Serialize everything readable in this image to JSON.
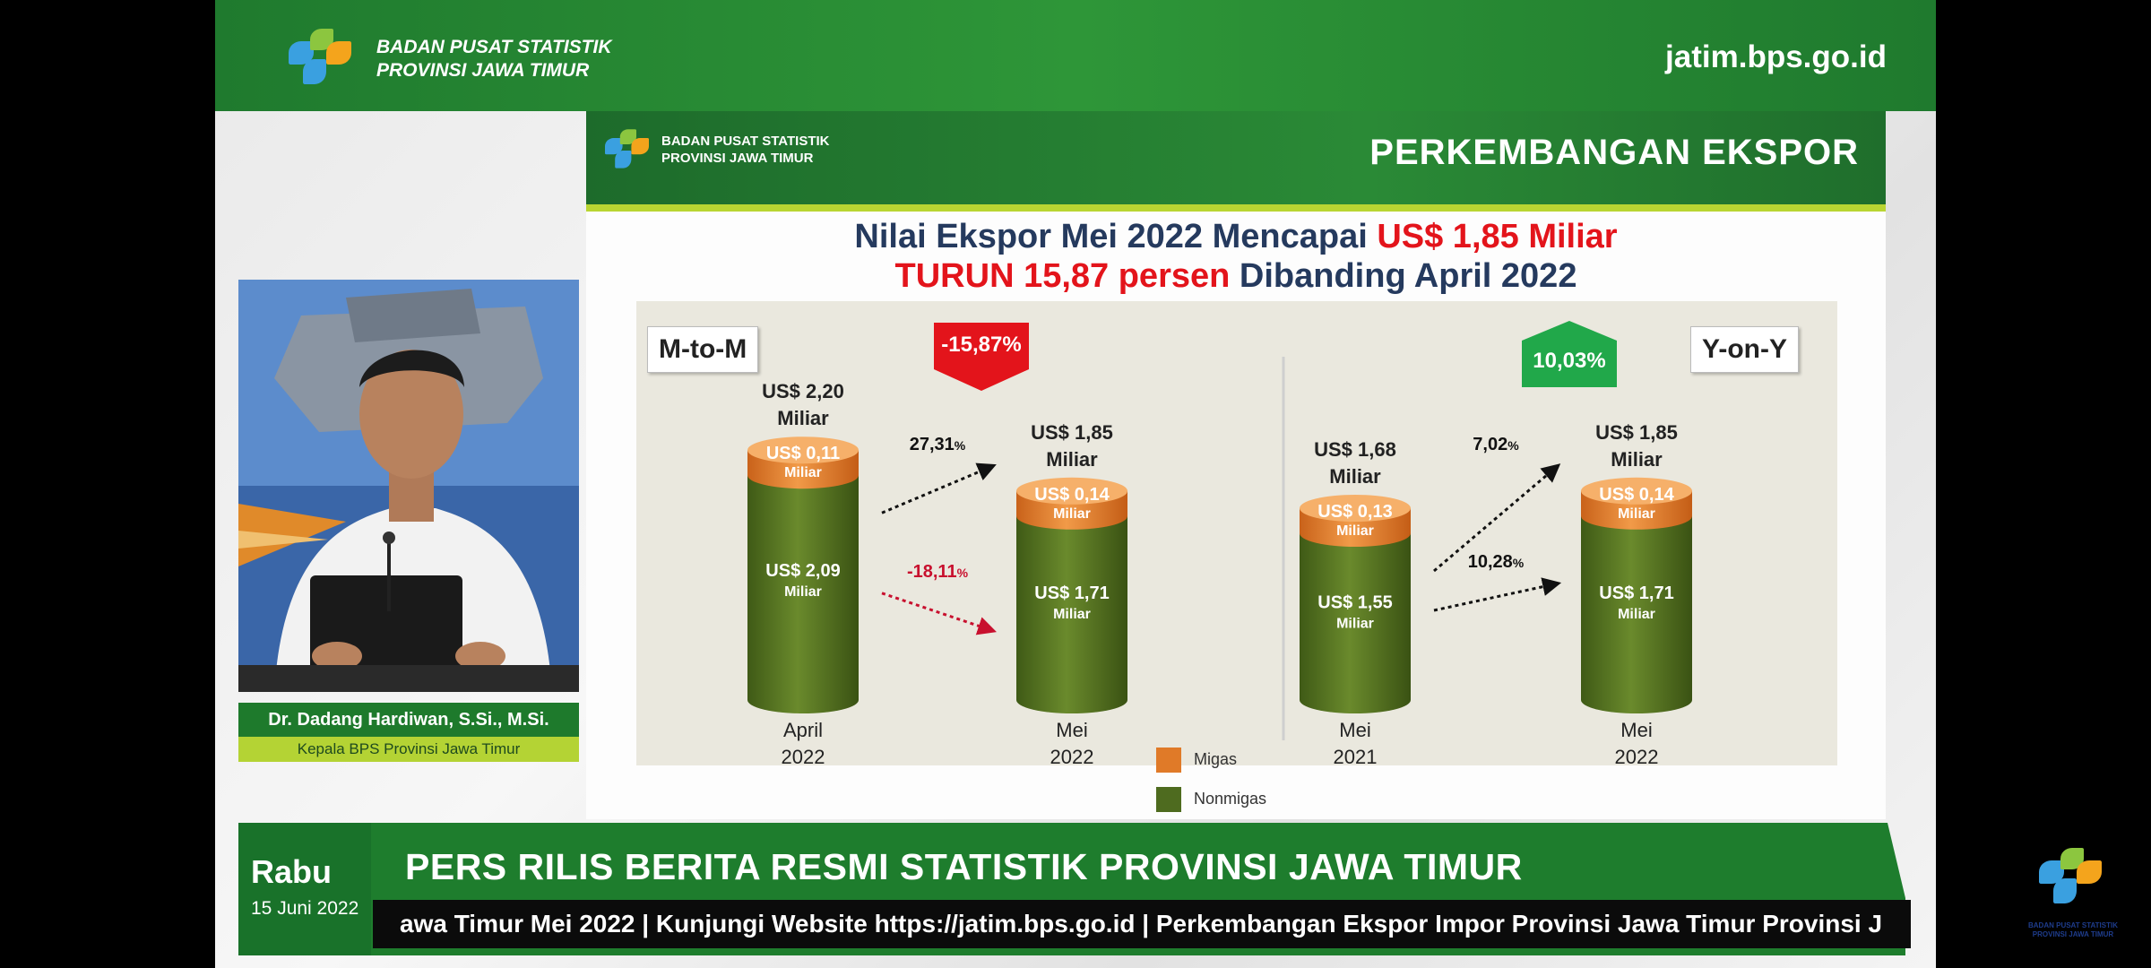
{
  "top_banner": {
    "org_line1": "BADAN PUSAT STATISTIK",
    "org_line2": "PROVINSI JAWA TIMUR",
    "url": "jatim.bps.go.id"
  },
  "slide": {
    "org_line1": "BADAN PUSAT STATISTIK",
    "org_line2": "PROVINSI JAWA TIMUR",
    "heading": "PERKEMBANGAN EKSPOR",
    "headline_l1_a": "Nilai Ekspor Mei 2022 Mencapai ",
    "headline_l1_b": "US$ 1,85 Miliar",
    "headline_l2_a": "TURUN 15,87 persen",
    "headline_l2_b": " Dibanding April 2022",
    "mtom_tag": "M-to-M",
    "yoy_tag": "Y-on-Y",
    "mtom_change": "-15,87%",
    "yoy_change": "10,03%"
  },
  "colors": {
    "migas": "#e07a28",
    "nonmigas": "#4e6b1f",
    "down": "#e3141b",
    "up": "#21a84a",
    "brand": "#1e7d2d"
  },
  "chart_data": {
    "type": "bar",
    "stacked": true,
    "unit": "Miliar US$",
    "categories": [
      {
        "l1": "April",
        "l2": "2022"
      },
      {
        "l1": "Mei",
        "l2": "2022"
      },
      {
        "l1": "Mei",
        "l2": "2021"
      },
      {
        "l1": "Mei",
        "l2": "2022"
      }
    ],
    "series": [
      {
        "name": "Migas",
        "values": [
          0.11,
          0.14,
          0.13,
          0.14
        ],
        "labels": [
          "US$ 0,11",
          "US$ 0,14",
          "US$ 0,13",
          "US$ 0,14"
        ]
      },
      {
        "name": "Nonmigas",
        "values": [
          2.09,
          1.71,
          1.55,
          1.71
        ],
        "labels": [
          "US$ 2,09",
          "US$ 1,71",
          "US$ 1,55",
          "US$ 1,71"
        ]
      }
    ],
    "totals": [
      2.2,
      1.85,
      1.68,
      1.85
    ],
    "total_labels": [
      "US$ 2,20",
      "US$ 1,85",
      "US$ 1,68",
      "US$ 1,85"
    ],
    "unit_label": "Miliar",
    "annotations": [
      {
        "text": "27,31",
        "pct": "%",
        "color": "#111",
        "from": 0,
        "to": 1,
        "series": "Migas"
      },
      {
        "text": "-18,11",
        "pct": "%",
        "color": "#c8102e",
        "from": 0,
        "to": 1,
        "series": "Nonmigas"
      },
      {
        "text": "7,02",
        "pct": "%",
        "color": "#111",
        "from": 2,
        "to": 3,
        "series": "Migas"
      },
      {
        "text": "10,28",
        "pct": "%",
        "color": "#111",
        "from": 2,
        "to": 3,
        "series": "Nonmigas"
      }
    ],
    "legend": [
      "Migas",
      "Nonmigas"
    ]
  },
  "presenter": {
    "name": "Dr. Dadang Hardiwan, S.Si., M.Si.",
    "role": "Kepala BPS Provinsi Jawa Timur"
  },
  "lower_third": {
    "day": "Rabu",
    "date": "15 Juni 2022",
    "title": "PERS RILIS BERITA RESMI STATISTIK PROVINSI JAWA TIMUR",
    "ticker": "awa Timur Mei 2022 | Kunjungi Website https://jatim.bps.go.id | Perkembangan Ekspor Impor Provinsi Jawa Timur Provinsi J"
  },
  "corner_logo": {
    "line1": "BADAN PUSAT STATISTIK",
    "line2": "PROVINSI JAWA TIMUR"
  }
}
